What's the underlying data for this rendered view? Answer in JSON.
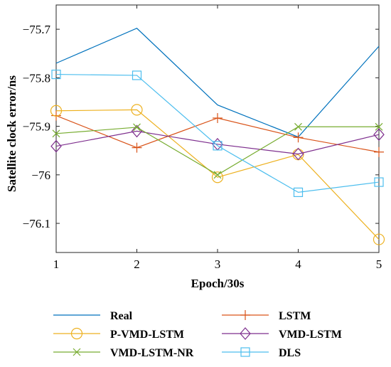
{
  "chart_data": {
    "type": "line",
    "xlabel": "Epoch/30s",
    "ylabel": "Satellite clock error/ns",
    "x": [
      1,
      2,
      3,
      4,
      5
    ],
    "xlim": [
      1,
      5
    ],
    "ylim": [
      -76.16,
      -75.65
    ],
    "xticks": [
      1,
      2,
      3,
      4,
      5
    ],
    "xtick_labels": [
      "1",
      "2",
      "3",
      "4",
      "5"
    ],
    "yticks": [
      -75.7,
      -75.8,
      -75.9,
      -76,
      -76.1
    ],
    "ytick_labels": [
      "−75.7",
      "−75.8",
      "−75.9",
      "−76",
      "−76.1"
    ],
    "grid": false,
    "legend_position": "bottom",
    "series": [
      {
        "name": "Real",
        "color": "#0072BD",
        "marker": "none",
        "values": [
          -75.77,
          -75.698,
          -75.856,
          -75.922,
          -75.735
        ]
      },
      {
        "name": "LSTM",
        "color": "#D95319",
        "marker": "plus",
        "values": [
          -75.878,
          -75.944,
          -75.883,
          -75.923,
          -75.953
        ]
      },
      {
        "name": "P-VMD-LSTM",
        "color": "#EDB120",
        "marker": "circle",
        "values": [
          -75.868,
          -75.866,
          -76.005,
          -75.958,
          -76.133
        ]
      },
      {
        "name": "VMD-LSTM",
        "color": "#7E2F8E",
        "marker": "diamond",
        "values": [
          -75.941,
          -75.91,
          -75.937,
          -75.957,
          -75.917
        ]
      },
      {
        "name": "VMD-LSTM-NR",
        "color": "#77AC30",
        "marker": "x",
        "values": [
          -75.915,
          -75.902,
          -76.0,
          -75.901,
          -75.901
        ]
      },
      {
        "name": "DLS",
        "color": "#4DBEEE",
        "marker": "square",
        "values": [
          -75.793,
          -75.795,
          -75.94,
          -76.036,
          -76.015
        ]
      }
    ]
  }
}
